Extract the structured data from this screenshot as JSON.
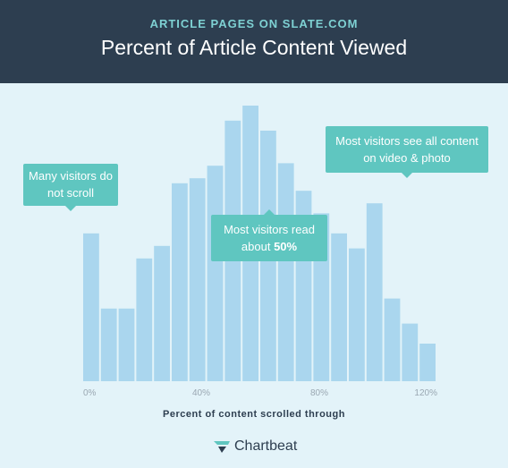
{
  "header": {
    "kicker": "ARTICLE PAGES ON SLATE.COM",
    "title": "Percent of Article Content Viewed"
  },
  "callouts": {
    "no_scroll": "Many visitors do not scroll",
    "read_half_prefix": "Most visitors read about ",
    "read_half_value": "50%",
    "see_all": "Most visitors see all content on video & photo"
  },
  "brand": {
    "name": "Chartbeat"
  },
  "colors": {
    "bar": "#aad6ee",
    "callout": "#5fc6c0",
    "header": "#2d3e50",
    "background": "#e3f3f9"
  },
  "chart_data": {
    "type": "bar",
    "title": "Percent of Article Content Viewed",
    "xlabel": "Percent of content scrolled through",
    "ylabel": "",
    "x_ticks": [
      "0%",
      "40%",
      "80%",
      "120%"
    ],
    "x_tick_values": [
      0,
      40,
      80,
      120
    ],
    "x": [
      0,
      6.3,
      12.6,
      18.9,
      25.3,
      31.6,
      37.9,
      44.2,
      50.5,
      56.8,
      63.2,
      69.5,
      75.8,
      82.1,
      88.4,
      94.7,
      101.1,
      107.4,
      113.7,
      120
    ],
    "values": [
      59,
      29,
      29,
      49,
      54,
      79,
      81,
      86,
      104,
      110,
      100,
      87,
      76,
      67,
      59,
      53,
      71,
      33,
      23,
      15
    ],
    "grid": false,
    "legend": "none"
  }
}
